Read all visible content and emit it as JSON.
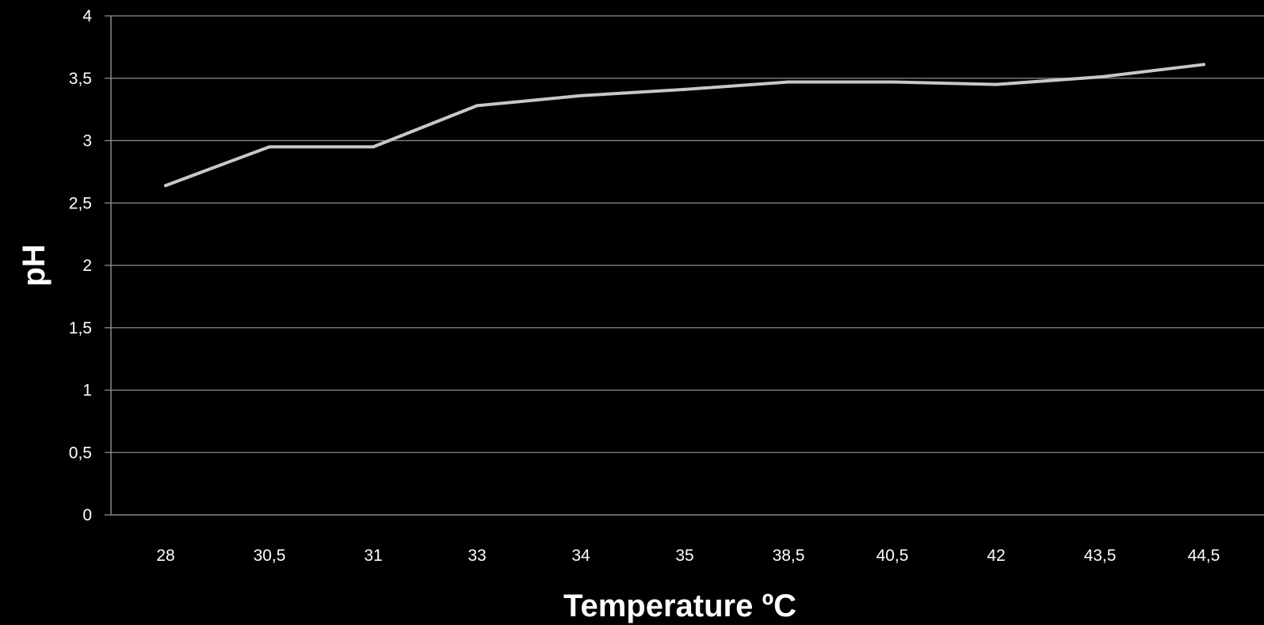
{
  "chart_data": {
    "type": "line",
    "title": "",
    "xlabel": "Temperature  ºC",
    "ylabel": "pH",
    "categories": [
      "28",
      "30,5",
      "31",
      "33",
      "34",
      "35",
      "38,5",
      "40,5",
      "42",
      "43,5",
      "44,5"
    ],
    "y_ticks": [
      "0",
      "0,5",
      "1",
      "1,5",
      "2",
      "2,5",
      "3",
      "3,5",
      "4"
    ],
    "ylim": [
      0,
      4
    ],
    "grid": true,
    "legend": "none",
    "series": [
      {
        "values": [
          2.64,
          2.95,
          2.95,
          3.28,
          3.36,
          3.41,
          3.47,
          3.47,
          3.45,
          3.51,
          3.61
        ],
        "color": "#c8c8c8"
      }
    ]
  }
}
